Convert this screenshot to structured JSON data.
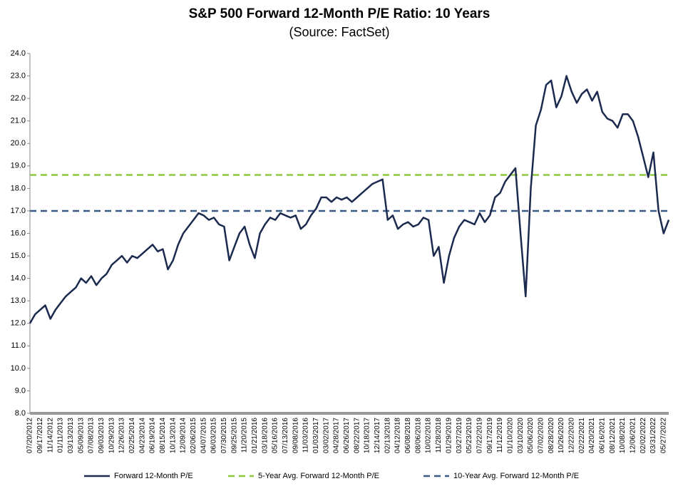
{
  "chart_data": {
    "type": "line",
    "title": "S&P 500 Forward 12-Month P/E Ratio: 10 Years",
    "subtitle": "(Source: FactSet)",
    "categories": [
      "07/20/2012",
      null,
      "09/17/2012",
      null,
      "11/14/2012",
      null,
      "01/11/2013",
      null,
      "03/13/2013",
      null,
      "05/09/2013",
      null,
      "07/08/2013",
      null,
      "09/03/2013",
      null,
      "10/29/2013",
      null,
      "12/26/2013",
      null,
      "02/25/2014",
      null,
      "04/23/2014",
      null,
      "06/19/2014",
      null,
      "08/15/2014",
      null,
      "10/13/2014",
      null,
      "12/09/2014",
      null,
      "02/06/2015",
      null,
      "04/07/2015",
      null,
      "06/03/2015",
      null,
      "07/30/2015",
      null,
      "09/25/2015",
      null,
      "11/20/2015",
      null,
      "01/21/2016",
      null,
      "03/18/2016",
      null,
      "05/16/2016",
      null,
      "07/13/2016",
      null,
      "09/08/2016",
      null,
      "11/03/2016",
      null,
      "01/03/2017",
      null,
      "03/02/2017",
      null,
      "04/28/2017",
      null,
      "06/26/2017",
      null,
      "08/22/2017",
      null,
      "10/18/2017",
      null,
      "12/14/2017",
      null,
      "02/13/2018",
      null,
      "04/12/2018",
      null,
      "06/08/2018",
      null,
      "08/06/2018",
      null,
      "10/02/2018",
      null,
      "11/28/2018",
      null,
      "01/29/2019",
      null,
      "03/27/2019",
      null,
      "05/23/2019",
      null,
      "07/22/2019",
      null,
      "09/17/2019",
      null,
      "11/12/2019",
      null,
      "01/10/2020",
      null,
      "03/10/2020",
      null,
      "05/06/2020",
      null,
      "07/02/2020",
      null,
      "08/28/2020",
      null,
      "10/26/2020",
      null,
      "12/22/2020",
      null,
      "02/22/2021",
      null,
      "04/20/2021",
      null,
      "06/16/2021",
      null,
      "08/12/2021",
      null,
      "10/08/2021",
      null,
      "12/06/2021",
      null,
      "02/02/2022",
      null,
      "03/31/2022",
      null,
      "05/27/2022",
      null
    ],
    "series": [
      {
        "name": "Forward 12-Month P/E",
        "color": "#1b2a4e",
        "values": [
          12.0,
          12.4,
          12.6,
          12.8,
          12.2,
          12.6,
          12.9,
          13.2,
          13.4,
          13.6,
          14.0,
          13.8,
          14.1,
          13.7,
          14.0,
          14.2,
          14.6,
          14.8,
          15.0,
          14.7,
          15.0,
          14.9,
          15.1,
          15.3,
          15.5,
          15.2,
          15.3,
          14.4,
          14.8,
          15.5,
          16.0,
          16.3,
          16.6,
          16.9,
          16.8,
          16.6,
          16.7,
          16.4,
          16.3,
          14.8,
          15.4,
          16.0,
          16.3,
          15.5,
          14.9,
          16.0,
          16.4,
          16.7,
          16.6,
          16.9,
          16.8,
          16.7,
          16.8,
          16.2,
          16.4,
          16.8,
          17.1,
          17.6,
          17.6,
          17.4,
          17.6,
          17.5,
          17.6,
          17.4,
          17.6,
          17.8,
          18.0,
          18.2,
          18.3,
          18.4,
          16.6,
          16.8,
          16.2,
          16.4,
          16.5,
          16.3,
          16.4,
          16.7,
          16.6,
          15.0,
          15.4,
          13.8,
          15.0,
          15.8,
          16.3,
          16.6,
          16.5,
          16.4,
          16.9,
          16.5,
          16.8,
          17.6,
          17.8,
          18.3,
          18.6,
          18.9,
          16.0,
          13.2,
          18.0,
          20.8,
          21.5,
          22.6,
          22.8,
          21.6,
          22.1,
          23.0,
          22.3,
          21.8,
          22.2,
          22.4,
          21.9,
          22.3,
          21.4,
          21.1,
          21.0,
          20.7,
          21.3,
          21.3,
          21.0,
          20.3,
          19.4,
          18.5,
          19.6,
          17.0,
          16.0,
          16.6
        ]
      }
    ],
    "reference_lines": [
      {
        "name": "5-Year Avg. Forward 12-Month P/E",
        "value": 18.6,
        "color": "#8dc63f"
      },
      {
        "name": "10-Year Avg. Forward 12-Month P/E",
        "value": 17.0,
        "color": "#3c5a86"
      }
    ],
    "ylim": [
      8,
      24
    ],
    "yticks": [
      {
        "value": 8,
        "label": "8.0"
      },
      {
        "value": 9,
        "label": "9.0"
      },
      {
        "value": 10,
        "label": "10.0"
      },
      {
        "value": 11,
        "label": "11.0"
      },
      {
        "value": 12,
        "label": "12.0"
      },
      {
        "value": 13,
        "label": "13.0"
      },
      {
        "value": 14,
        "label": "14.0"
      },
      {
        "value": 15,
        "label": "15.0"
      },
      {
        "value": 16,
        "label": "16.0"
      },
      {
        "value": 17,
        "label": "17.0"
      },
      {
        "value": 18,
        "label": "18.0"
      },
      {
        "value": 19,
        "label": "19.0"
      },
      {
        "value": 20,
        "label": "20.0"
      },
      {
        "value": 21,
        "label": "21.0"
      },
      {
        "value": 22,
        "label": "22.0"
      },
      {
        "value": 23,
        "label": "23.0"
      },
      {
        "value": 24,
        "label": "24.0"
      }
    ],
    "grid": false,
    "legend": "bottom"
  }
}
